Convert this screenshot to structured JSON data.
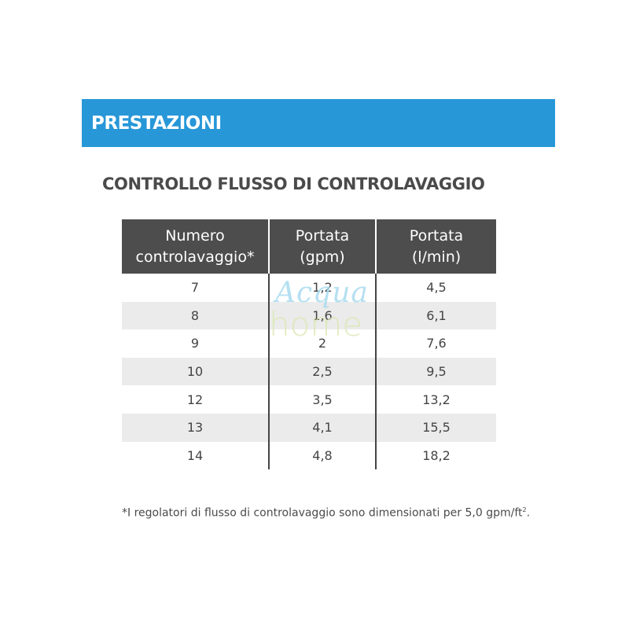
{
  "banner": {
    "title": "PRESTAZIONI"
  },
  "section": {
    "title": "CONTROLLO FLUSSO DI CONTROLAVAGGIO"
  },
  "table": {
    "headers": [
      [
        "Numero",
        "controlavaggio*"
      ],
      [
        "Portata",
        "(gpm)"
      ],
      [
        "Portata",
        "(l/min)"
      ]
    ],
    "rows": [
      [
        "7",
        "1,2",
        "4,5"
      ],
      [
        "8",
        "1,6",
        "6,1"
      ],
      [
        "9",
        "2",
        "7,6"
      ],
      [
        "10",
        "2,5",
        "9,5"
      ],
      [
        "12",
        "3,5",
        "13,2"
      ],
      [
        "13",
        "4,1",
        "15,5"
      ],
      [
        "14",
        "4,8",
        "18,2"
      ]
    ]
  },
  "watermark": {
    "line1": "Acqua",
    "line2": "home"
  },
  "footnote": {
    "text": "*I regolatori di flusso di controlavaggio sono dimensionati per 5,0 gpm/ft",
    "superscript": "2",
    "suffix": "."
  },
  "colors": {
    "banner": "#2797d8",
    "table_header": "#4d4d4d",
    "row_shade": "#ebebeb",
    "text": "#4a4a4a"
  }
}
